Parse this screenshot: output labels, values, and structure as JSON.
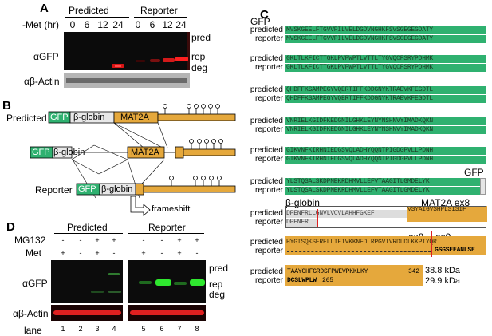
{
  "panelA": {
    "label": "A",
    "groups": [
      "Predicted",
      "Reporter"
    ],
    "met_label": "-Met (hr)",
    "timepoints": [
      "0",
      "6",
      "12",
      "24",
      "0",
      "6",
      "12",
      "24"
    ],
    "blot_label": "αGFP",
    "actin_label": "αβ-Actin",
    "band_labels": [
      "pred",
      "rep",
      "deg"
    ]
  },
  "panelB": {
    "label": "B",
    "predicted": {
      "name": "Predicted",
      "boxes": [
        "GFP",
        "β-globin",
        "MAT2A"
      ]
    },
    "middle": {
      "boxes": [
        "GFP",
        "β-globin",
        "MAT2A"
      ]
    },
    "reporter": {
      "name": "Reporter",
      "boxes": [
        "GFP",
        "β-globin"
      ]
    },
    "frameshift": "frameshift"
  },
  "panelC": {
    "label": "C",
    "gfp_header": "GFP",
    "row_labels": [
      "predicted",
      "reporter"
    ],
    "blocks": [
      {
        "pred": "MVSKGEELFTGVVPILVELDGDVNGHKFSVSGEGEGDATY",
        "rep": "MVSKGEELFTGVVPILVELDGDVNGHKFSVSGEGEGDATY"
      },
      {
        "pred": "GKLTLKFICTTGKLPVPWPTLVTTLTYGVQCFSRYPDHMK",
        "rep": "GKLTLKFICTTGKLPVPWPTLVTTLTYGVQCFSRYPDHMK"
      },
      {
        "pred": "QHDFFKSAMPEGYVQERTIFFKDDGNYKTRAEVKFEGDTL",
        "rep": "QHDFFKSAMPEGYVQERTIFFKDDGNYKTRAEVKFEGDTL"
      },
      {
        "pred": "VNRIELKGIDFKEDGNILGHKLEYNYNSHNVYIMADKQKN",
        "rep": "VNRIELKGIDFKEDGNILGHKLEYNYNSHNVYIMADKQKN"
      },
      {
        "pred": "GIKVNFKIRHNIEDGSVQLADHYQQNTPIGDGPVLLPDNH",
        "rep": "GIKVNFKIRHNIEDGSVQLADHYQQNTPIGDGPVLLPDNH"
      },
      {
        "pred": "YLSTQSALSKDPNEKRDHMVLLEFVTAAGITLGMDELYK",
        "rep": "YLSTQSALSKDPNEKRDHMVLLEFVTAAGITLGMDELYK"
      }
    ],
    "gfp_end_label": "GFP",
    "globin_label": "β-globin",
    "mat2a_label": "MAT2A ex8",
    "block7": {
      "pred_grey": "DPENFRLLGNVLVCVLAHHFGKEF",
      "pred_gold": "VSYAIGVSHPLSISIF",
      "rep_grey": "DPENFR"
    },
    "ex8_label": "ex8",
    "ex9_label": "ex9",
    "block8": {
      "pred": "HYGTSQKSERELLIEIVKKNFDLRPGVIVRDLDLKKPIYQR",
      "rep_tail": "GSGSEEANLSE"
    },
    "block9": {
      "pred": "TAAYGHFGRDSFPWEVPKKLKY",
      "pred_num": "342",
      "rep": "DCSLWPLW",
      "rep_num": "265"
    },
    "sizes": [
      "38.8 kDa",
      "29.9 kDa"
    ]
  },
  "panelD": {
    "label": "D",
    "groups": [
      "Predicted",
      "Reporter"
    ],
    "mg132_label": "MG132",
    "met_label": "Met",
    "mg132": [
      "-",
      "-",
      "+",
      "+",
      "-",
      "-",
      "+",
      "+"
    ],
    "met": [
      "+",
      "-",
      "+",
      "-",
      "+",
      "-",
      "+",
      "-"
    ],
    "blot_label": "αGFP",
    "actin_label": "αβ-Actin",
    "band_labels": [
      "pred",
      "rep",
      "deg"
    ],
    "lane_label": "lane",
    "lanes": [
      "1",
      "2",
      "3",
      "4",
      "5",
      "6",
      "7",
      "8"
    ]
  }
}
